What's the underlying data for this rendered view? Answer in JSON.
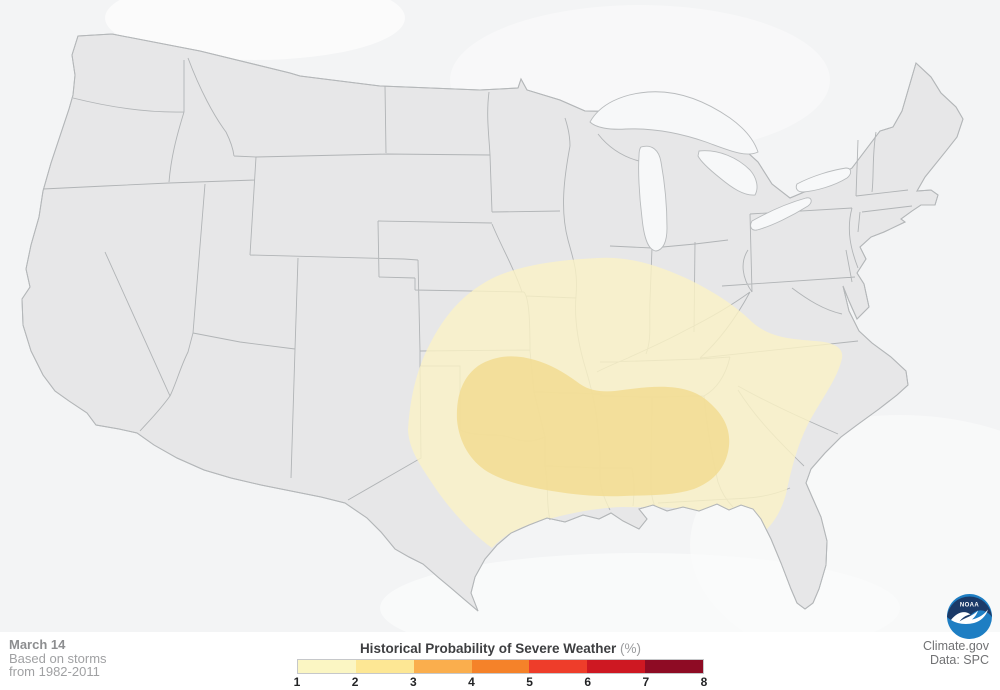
{
  "annotation": {
    "date_label": "March 14",
    "source_line1": "Based on storms",
    "source_line2": "from 1982-2011"
  },
  "legend": {
    "title": "Historical Probability of Severe Weather",
    "unit_label": "(%)",
    "tick_labels": [
      "1",
      "2",
      "3",
      "4",
      "5",
      "6",
      "7",
      "8"
    ],
    "segment_colors": [
      "#FBF6C3",
      "#FDE794",
      "#FAAE4D",
      "#F58229",
      "#EE3D2A",
      "#CE1822",
      "#8E0B24"
    ]
  },
  "credits": {
    "site_label": "Climate.gov",
    "data_label": "Data: SPC"
  },
  "noaa_logo": {
    "label": "NOAA"
  },
  "map": {
    "region_label": "Contiguous United States",
    "colors": {
      "background": "#F3F4F5",
      "land": "#E7E7E8",
      "coast": "#B4B7B9",
      "state_border": "#ABAEB0",
      "water": "#F7F8F9",
      "contour_1_pct": "#FBF3C6",
      "contour_2_pct": "#F2DC92"
    },
    "contours": [
      {
        "probability_percent": 1,
        "extent": "Southern Plains and mid-Mississippi Valley east through Kentucky and the Carolinas, south to the Gulf Coast and north Florida"
      },
      {
        "probability_percent": 2,
        "extent": "Eastern Oklahoma and Arkansas through northern Louisiana, Mississippi, Alabama and far western Georgia"
      }
    ]
  }
}
